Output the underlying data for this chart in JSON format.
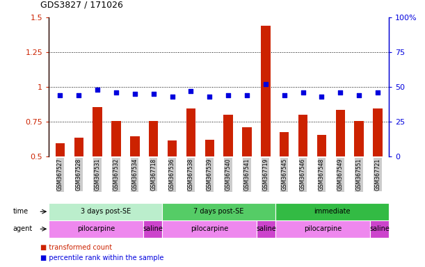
{
  "title": "GDS3827 / 171026",
  "samples": [
    "GSM367527",
    "GSM367528",
    "GSM367531",
    "GSM367532",
    "GSM367534",
    "GSM367718",
    "GSM367536",
    "GSM367538",
    "GSM367539",
    "GSM367540",
    "GSM367541",
    "GSM367719",
    "GSM367545",
    "GSM367546",
    "GSM367548",
    "GSM367549",
    "GSM367551",
    "GSM367721"
  ],
  "bar_values": [
    0.595,
    0.635,
    0.855,
    0.755,
    0.645,
    0.755,
    0.615,
    0.845,
    0.62,
    0.8,
    0.71,
    1.44,
    0.675,
    0.8,
    0.655,
    0.835,
    0.755,
    0.845
  ],
  "dot_values": [
    44,
    44,
    48,
    46,
    45,
    45,
    43,
    47,
    43,
    44,
    44,
    52,
    44,
    46,
    43,
    46,
    44,
    46
  ],
  "bar_color": "#cc2200",
  "dot_color": "#0000dd",
  "ylim_left": [
    0.5,
    1.5
  ],
  "ylim_right": [
    0,
    100
  ],
  "yticks_left": [
    0.5,
    0.75,
    1.0,
    1.25,
    1.5
  ],
  "yticks_right": [
    0,
    25,
    50,
    75,
    100
  ],
  "ytick_labels_left": [
    "0.5",
    "0.75",
    "1",
    "1.25",
    "1.5"
  ],
  "ytick_labels_right": [
    "0",
    "25",
    "50",
    "75",
    "100%"
  ],
  "hlines": [
    0.75,
    1.0,
    1.25
  ],
  "time_groups": [
    {
      "label": "3 days post-SE",
      "start": 0,
      "end": 6,
      "color": "#bbeecc"
    },
    {
      "label": "7 days post-SE",
      "start": 6,
      "end": 12,
      "color": "#55cc66"
    },
    {
      "label": "immediate",
      "start": 12,
      "end": 18,
      "color": "#33bb44"
    }
  ],
  "agent_groups": [
    {
      "label": "pilocarpine",
      "start": 0,
      "end": 5,
      "color": "#ee88ee"
    },
    {
      "label": "saline",
      "start": 5,
      "end": 6,
      "color": "#cc44cc"
    },
    {
      "label": "pilocarpine",
      "start": 6,
      "end": 11,
      "color": "#ee88ee"
    },
    {
      "label": "saline",
      "start": 11,
      "end": 12,
      "color": "#cc44cc"
    },
    {
      "label": "pilocarpine",
      "start": 12,
      "end": 17,
      "color": "#ee88ee"
    },
    {
      "label": "saline",
      "start": 17,
      "end": 18,
      "color": "#cc44cc"
    }
  ],
  "legend_items": [
    {
      "label": "transformed count",
      "color": "#cc2200",
      "marker": "s"
    },
    {
      "label": "percentile rank within the sample",
      "color": "#0000dd",
      "marker": "s"
    }
  ],
  "xticklabel_bg": "#cccccc",
  "row_label_color": "black",
  "row_label_fontsize": 7,
  "tick_label_fontsize": 6,
  "bar_width": 0.5,
  "dot_size": 20
}
